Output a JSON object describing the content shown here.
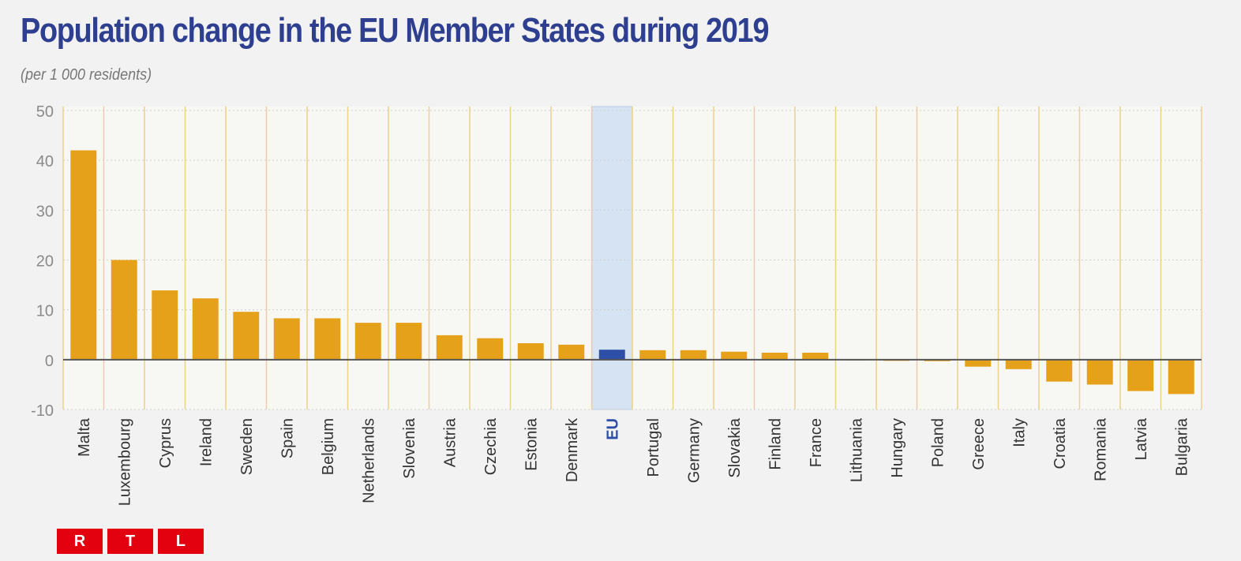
{
  "chart_data": {
    "type": "bar",
    "title": "Population change in the EU Member States during 2019",
    "subtitle": "(per 1 000 residents)",
    "categories": [
      "Malta",
      "Luxembourg",
      "Cyprus",
      "Ireland",
      "Sweden",
      "Spain",
      "Belgium",
      "Netherlands",
      "Slovenia",
      "Austria",
      "Czechia",
      "Estonia",
      "Denmark",
      "EU",
      "Portugal",
      "Germany",
      "Slovakia",
      "Finland",
      "France",
      "Lithuania",
      "Hungary",
      "Poland",
      "Greece",
      "Italy",
      "Croatia",
      "Romania",
      "Latvia",
      "Bulgaria"
    ],
    "values": [
      42.0,
      20.0,
      13.9,
      12.3,
      9.6,
      8.3,
      8.3,
      7.4,
      7.4,
      4.9,
      4.3,
      3.3,
      3.0,
      2.0,
      1.9,
      1.9,
      1.6,
      1.4,
      1.4,
      0.1,
      -0.2,
      -0.3,
      -1.4,
      -1.9,
      -4.4,
      -5.0,
      -6.3,
      -6.9
    ],
    "highlight": "EU",
    "ylim": [
      -10,
      50
    ],
    "yticks": [
      -10,
      0,
      10,
      20,
      30,
      40,
      50
    ],
    "xlabel": "",
    "ylabel": "",
    "grid": true,
    "colors": {
      "bar": "#e6a11a",
      "highlight_bar": "#2e4fa8",
      "highlight_band": "#d6e3f3",
      "gridline": "#ecd28a",
      "title": "#2e3f8f"
    }
  },
  "logo": {
    "letters": [
      "R",
      "T",
      "L"
    ]
  }
}
